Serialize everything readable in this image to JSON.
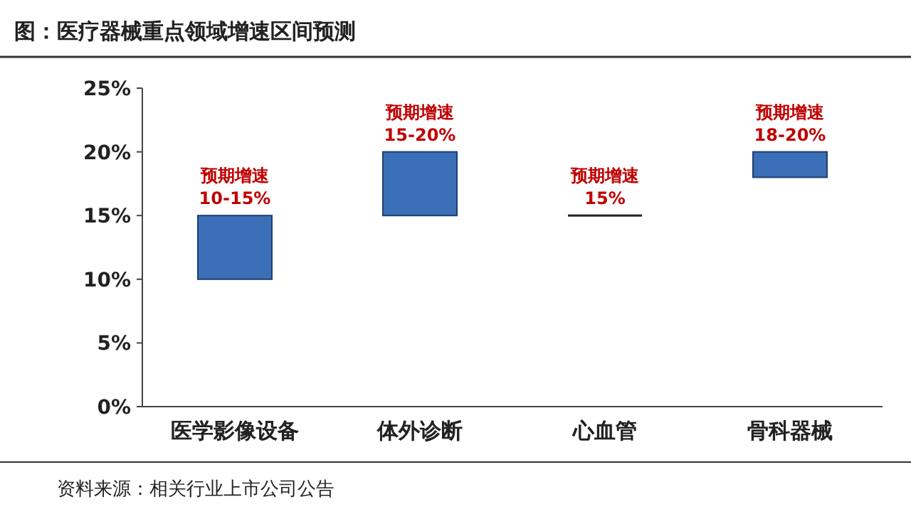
{
  "chart_data": {
    "type": "bar",
    "title": "图：医疗器械重点领域增速区间预测",
    "categories": [
      "医学影像设备",
      "体外诊断",
      "心血管",
      "骨科器械"
    ],
    "base": [
      10,
      15,
      15,
      18
    ],
    "values": [
      5,
      5,
      0,
      2
    ],
    "colors": [
      "#3b70b8",
      "#3b70b8",
      "#222222",
      "#3b70b8"
    ],
    "ylim": [
      0,
      25
    ],
    "yticks": [
      {
        "value": 0,
        "label": "0%"
      },
      {
        "value": 5,
        "label": "5%"
      },
      {
        "value": 10,
        "label": "10%"
      },
      {
        "value": 15,
        "label": "15%"
      },
      {
        "value": 20,
        "label": "20%"
      },
      {
        "value": 25,
        "label": "25%"
      }
    ],
    "grid": false,
    "annotations": [
      {
        "text": "预期增速\n10-15%",
        "x": "医学影像设备",
        "y": 15
      },
      {
        "text": "预期增速\n15-20%",
        "x": "体外诊断",
        "y": 20
      },
      {
        "text": "预期增速\n15%",
        "x": "心血管",
        "y": 15
      },
      {
        "text": "预期增速\n18-20%",
        "x": "骨科器械",
        "y": 20
      },
      "资料来源：相关行业上市公司公告"
    ]
  }
}
